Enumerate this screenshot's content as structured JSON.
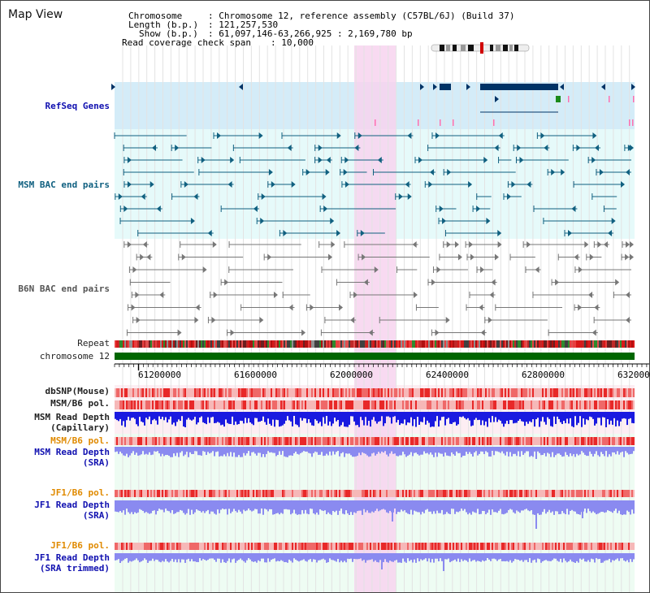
{
  "title": "Map View",
  "header": {
    "chromosome_label": "Chromosome",
    "chromosome_value": ": Chromosome 12, reference assembly (C57BL/6J) (Build 37)",
    "length_label": "Length (b.p.)",
    "length_value": ": 121,257,530",
    "show_label": "Show (b.p.)",
    "show_value": ": 61,097,146-63,266,925 : 2,169,780 bp",
    "coverage_label": "Read coverage check span",
    "coverage_value": ": 10,000"
  },
  "tracks": {
    "refseq": "RefSeq Genes",
    "msm_bac": "MSM BAC end pairs",
    "b6n_bac": "B6N BAC end pairs",
    "repeat": "Repeat",
    "chromosome": "chromosome 12",
    "dbsnp": "dbSNP(Mouse)",
    "msm_b6_pol": "MSM/B6 pol.",
    "msm_read_depth": "MSM Read Depth",
    "capillary": "(Capillary)",
    "msm_b6_pol2": "MSM/B6 pol.",
    "msm_read_depth_sra": "MSM Read Depth",
    "sra": "(SRA)",
    "jf1_b6_pol": "JF1/B6 pol.",
    "jf1_read_depth": "JF1 Read Depth",
    "sra2": "(SRA)",
    "jf1_b6_pol2": "JF1/B6 pol.",
    "jf1_read_depth_trim": "JF1 Read Depth",
    "sra_trimmed": "(SRA trimmed)"
  },
  "axis": {
    "ticks": [
      "61200000",
      "61600000",
      "62000000",
      "62400000",
      "62800000",
      "632000"
    ]
  },
  "colors": {
    "highlight": "#f7d4ee",
    "refseq_bg": "#d4ecf8",
    "msm_bg": "#e6fafa",
    "gene": "#003366",
    "msm_feature": "#106080",
    "b6n_feature": "#777777",
    "chromosome_bar": "#006600",
    "pol_dark": "#e82828",
    "pol_light": "#f6b8b8",
    "depth_dark": "#1a1ae0",
    "depth_light": "#8a8af0"
  }
}
